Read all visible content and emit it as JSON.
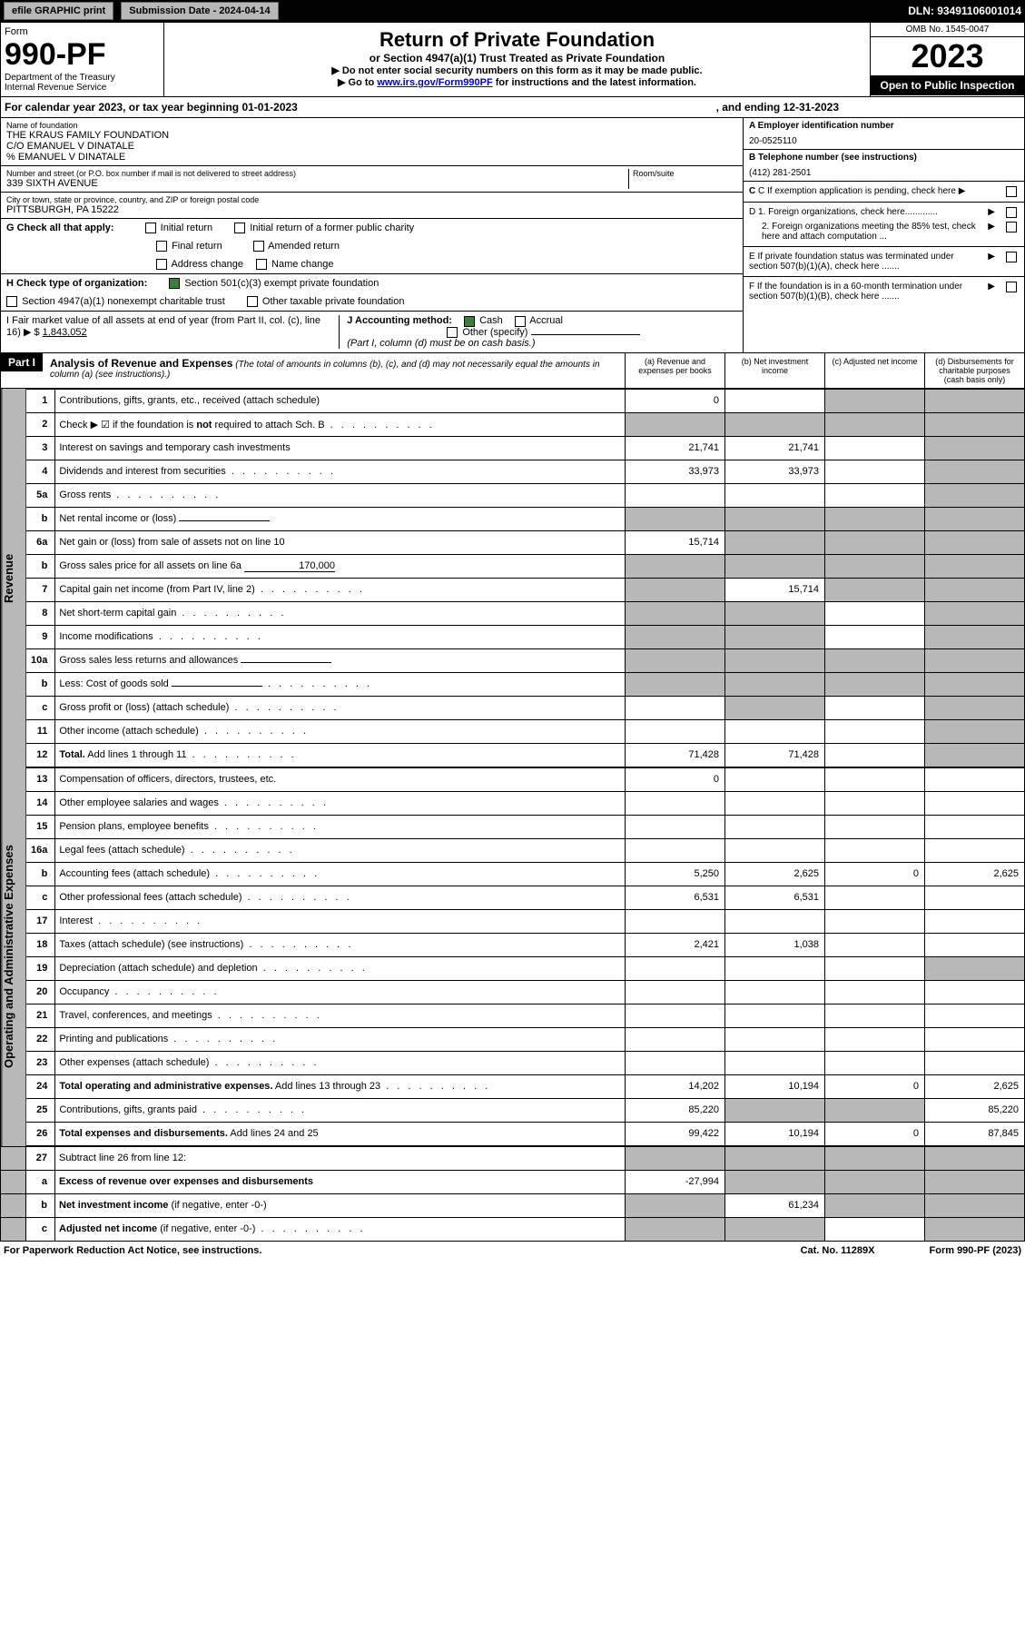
{
  "topbar": {
    "efile": "efile GRAPHIC print",
    "submission": "Submission Date - 2024-04-14",
    "dln": "DLN: 93491106001014"
  },
  "header": {
    "form_label": "Form",
    "form_no": "990-PF",
    "dept": "Department of the Treasury",
    "irs": "Internal Revenue Service",
    "title": "Return of Private Foundation",
    "subtitle": "or Section 4947(a)(1) Trust Treated as Private Foundation",
    "inst1": "▶ Do not enter social security numbers on this form as it may be made public.",
    "inst2_pre": "▶ Go to ",
    "inst2_link": "www.irs.gov/Form990PF",
    "inst2_post": " for instructions and the latest information.",
    "omb": "OMB No. 1545-0047",
    "year": "2023",
    "open": "Open to Public Inspection"
  },
  "cal": {
    "pre": "For calendar year 2023, or tax year beginning ",
    "begin": "01-01-2023",
    "mid": ", and ending ",
    "end": "12-31-2023"
  },
  "foundation": {
    "name_label": "Name of foundation",
    "name1": "THE KRAUS FAMILY FOUNDATION",
    "name2": "C/O EMANUEL V DINATALE",
    "name3": "% EMANUEL V DINATALE",
    "addr_label": "Number and street (or P.O. box number if mail is not delivered to street address)",
    "addr": "339 SIXTH AVENUE",
    "room_label": "Room/suite",
    "city_label": "City or town, state or province, country, and ZIP or foreign postal code",
    "city": "PITTSBURGH, PA  15222",
    "ein_label": "A Employer identification number",
    "ein": "20-0525110",
    "tel_label": "B Telephone number (see instructions)",
    "tel": "(412) 281-2501",
    "c_label": "C If exemption application is pending, check here",
    "d1": "D 1. Foreign organizations, check here.............",
    "d2": "2. Foreign organizations meeting the 85% test, check here and attach computation ...",
    "e_label": "E  If private foundation status was terminated under section 507(b)(1)(A), check here .......",
    "f_label": "F  If the foundation is in a 60-month termination under section 507(b)(1)(B), check here .......",
    "g_label": "G Check all that apply:",
    "g_opts": [
      "Initial return",
      "Initial return of a former public charity",
      "Final return",
      "Amended return",
      "Address change",
      "Name change"
    ],
    "h_label": "H Check type of organization:",
    "h1": "Section 501(c)(3) exempt private foundation",
    "h2": "Section 4947(a)(1) nonexempt charitable trust",
    "h3": "Other taxable private foundation",
    "i_label": "I Fair market value of all assets at end of year (from Part II, col. (c), line 16) ▶ $",
    "i_val": "1,843,052",
    "j_label": "J Accounting method:",
    "j_cash": "Cash",
    "j_accrual": "Accrual",
    "j_other": "Other (specify)",
    "j_note": "(Part I, column (d) must be on cash basis.)"
  },
  "part1": {
    "label": "Part I",
    "title": "Analysis of Revenue and Expenses",
    "title_note": "(The total of amounts in columns (b), (c), and (d) may not necessarily equal the amounts in column (a) (see instructions).)",
    "col_a": "(a)   Revenue and expenses per books",
    "col_b": "(b)   Net investment income",
    "col_c": "(c)   Adjusted net income",
    "col_d": "(d)   Disbursements for charitable purposes (cash basis only)"
  },
  "sections": {
    "revenue": "Revenue",
    "expenses": "Operating and Administrative Expenses"
  },
  "rows": [
    {
      "n": "1",
      "t": "Contributions, gifts, grants, etc., received (attach schedule)",
      "a": "0",
      "b": "",
      "c": "shade",
      "d": "shade"
    },
    {
      "n": "2",
      "t": "Check ▶ ☑ if the foundation is <b>not</b> required to attach Sch. B",
      "dots": true,
      "a": "shade",
      "b": "shade",
      "c": "shade",
      "d": "shade"
    },
    {
      "n": "3",
      "t": "Interest on savings and temporary cash investments",
      "a": "21,741",
      "b": "21,741",
      "c": "",
      "d": "shade"
    },
    {
      "n": "4",
      "t": "Dividends and interest from securities",
      "dots": true,
      "a": "33,973",
      "b": "33,973",
      "c": "",
      "d": "shade"
    },
    {
      "n": "5a",
      "t": "Gross rents",
      "dots": true,
      "a": "",
      "b": "",
      "c": "",
      "d": "shade"
    },
    {
      "n": "b",
      "t": "Net rental income or (loss)",
      "inline": "",
      "a": "shade",
      "b": "shade",
      "c": "shade",
      "d": "shade"
    },
    {
      "n": "6a",
      "t": "Net gain or (loss) from sale of assets not on line 10",
      "a": "15,714",
      "b": "shade",
      "c": "shade",
      "d": "shade"
    },
    {
      "n": "b",
      "t": "Gross sales price for all assets on line 6a",
      "inline": "170,000",
      "a": "shade",
      "b": "shade",
      "c": "shade",
      "d": "shade"
    },
    {
      "n": "7",
      "t": "Capital gain net income (from Part IV, line 2)",
      "dots": true,
      "a": "shade",
      "b": "15,714",
      "c": "shade",
      "d": "shade"
    },
    {
      "n": "8",
      "t": "Net short-term capital gain",
      "dots": true,
      "a": "shade",
      "b": "shade",
      "c": "",
      "d": "shade"
    },
    {
      "n": "9",
      "t": "Income modifications",
      "dots": true,
      "a": "shade",
      "b": "shade",
      "c": "",
      "d": "shade"
    },
    {
      "n": "10a",
      "t": "Gross sales less returns and allowances",
      "inline": "",
      "a": "shade",
      "b": "shade",
      "c": "shade",
      "d": "shade"
    },
    {
      "n": "b",
      "t": "Less: Cost of goods sold",
      "dots": true,
      "inline": "",
      "a": "shade",
      "b": "shade",
      "c": "shade",
      "d": "shade"
    },
    {
      "n": "c",
      "t": "Gross profit or (loss) (attach schedule)",
      "dots": true,
      "a": "",
      "b": "shade",
      "c": "",
      "d": "shade"
    },
    {
      "n": "11",
      "t": "Other income (attach schedule)",
      "dots": true,
      "a": "",
      "b": "",
      "c": "",
      "d": "shade"
    },
    {
      "n": "12",
      "t": "<b>Total.</b> Add lines 1 through 11",
      "dots": true,
      "a": "71,428",
      "b": "71,428",
      "c": "",
      "d": "shade"
    }
  ],
  "exp_rows": [
    {
      "n": "13",
      "t": "Compensation of officers, directors, trustees, etc.",
      "a": "0",
      "b": "",
      "c": "",
      "d": ""
    },
    {
      "n": "14",
      "t": "Other employee salaries and wages",
      "dots": true,
      "a": "",
      "b": "",
      "c": "",
      "d": ""
    },
    {
      "n": "15",
      "t": "Pension plans, employee benefits",
      "dots": true,
      "a": "",
      "b": "",
      "c": "",
      "d": ""
    },
    {
      "n": "16a",
      "t": "Legal fees (attach schedule)",
      "dots": true,
      "a": "",
      "b": "",
      "c": "",
      "d": ""
    },
    {
      "n": "b",
      "t": "Accounting fees (attach schedule)",
      "dots": true,
      "a": "5,250",
      "b": "2,625",
      "c": "0",
      "d": "2,625"
    },
    {
      "n": "c",
      "t": "Other professional fees (attach schedule)",
      "dots": true,
      "a": "6,531",
      "b": "6,531",
      "c": "",
      "d": ""
    },
    {
      "n": "17",
      "t": "Interest",
      "dots": true,
      "a": "",
      "b": "",
      "c": "",
      "d": ""
    },
    {
      "n": "18",
      "t": "Taxes (attach schedule) (see instructions)",
      "dots": true,
      "a": "2,421",
      "b": "1,038",
      "c": "",
      "d": ""
    },
    {
      "n": "19",
      "t": "Depreciation (attach schedule) and depletion",
      "dots": true,
      "a": "",
      "b": "",
      "c": "",
      "d": "shade"
    },
    {
      "n": "20",
      "t": "Occupancy",
      "dots": true,
      "a": "",
      "b": "",
      "c": "",
      "d": ""
    },
    {
      "n": "21",
      "t": "Travel, conferences, and meetings",
      "dots": true,
      "a": "",
      "b": "",
      "c": "",
      "d": ""
    },
    {
      "n": "22",
      "t": "Printing and publications",
      "dots": true,
      "a": "",
      "b": "",
      "c": "",
      "d": ""
    },
    {
      "n": "23",
      "t": "Other expenses (attach schedule)",
      "dots": true,
      "a": "",
      "b": "",
      "c": "",
      "d": ""
    },
    {
      "n": "24",
      "t": "<b>Total operating and administrative expenses.</b> Add lines 13 through 23",
      "dots": true,
      "a": "14,202",
      "b": "10,194",
      "c": "0",
      "d": "2,625"
    },
    {
      "n": "25",
      "t": "Contributions, gifts, grants paid",
      "dots": true,
      "a": "85,220",
      "b": "shade",
      "c": "shade",
      "d": "85,220"
    },
    {
      "n": "26",
      "t": "<b>Total expenses and disbursements.</b> Add lines 24 and 25",
      "a": "99,422",
      "b": "10,194",
      "c": "0",
      "d": "87,845"
    }
  ],
  "bottom_rows": [
    {
      "n": "27",
      "t": "Subtract line 26 from line 12:",
      "a": "shade",
      "b": "shade",
      "c": "shade",
      "d": "shade"
    },
    {
      "n": "a",
      "t": "<b>Excess of revenue over expenses and disbursements</b>",
      "a": "-27,994",
      "b": "shade",
      "c": "shade",
      "d": "shade"
    },
    {
      "n": "b",
      "t": "<b>Net investment income</b> (if negative, enter -0-)",
      "a": "shade",
      "b": "61,234",
      "c": "shade",
      "d": "shade"
    },
    {
      "n": "c",
      "t": "<b>Adjusted net income</b> (if negative, enter -0-)",
      "dots": true,
      "a": "shade",
      "b": "shade",
      "c": "",
      "d": "shade"
    }
  ],
  "footer": {
    "left": "For Paperwork Reduction Act Notice, see instructions.",
    "mid": "Cat. No. 11289X",
    "right": "Form 990-PF (2023)"
  },
  "colors": {
    "shade": "#b8b8b8",
    "black": "#000000",
    "link": "#0000cc",
    "check": "#3b7d3b"
  }
}
